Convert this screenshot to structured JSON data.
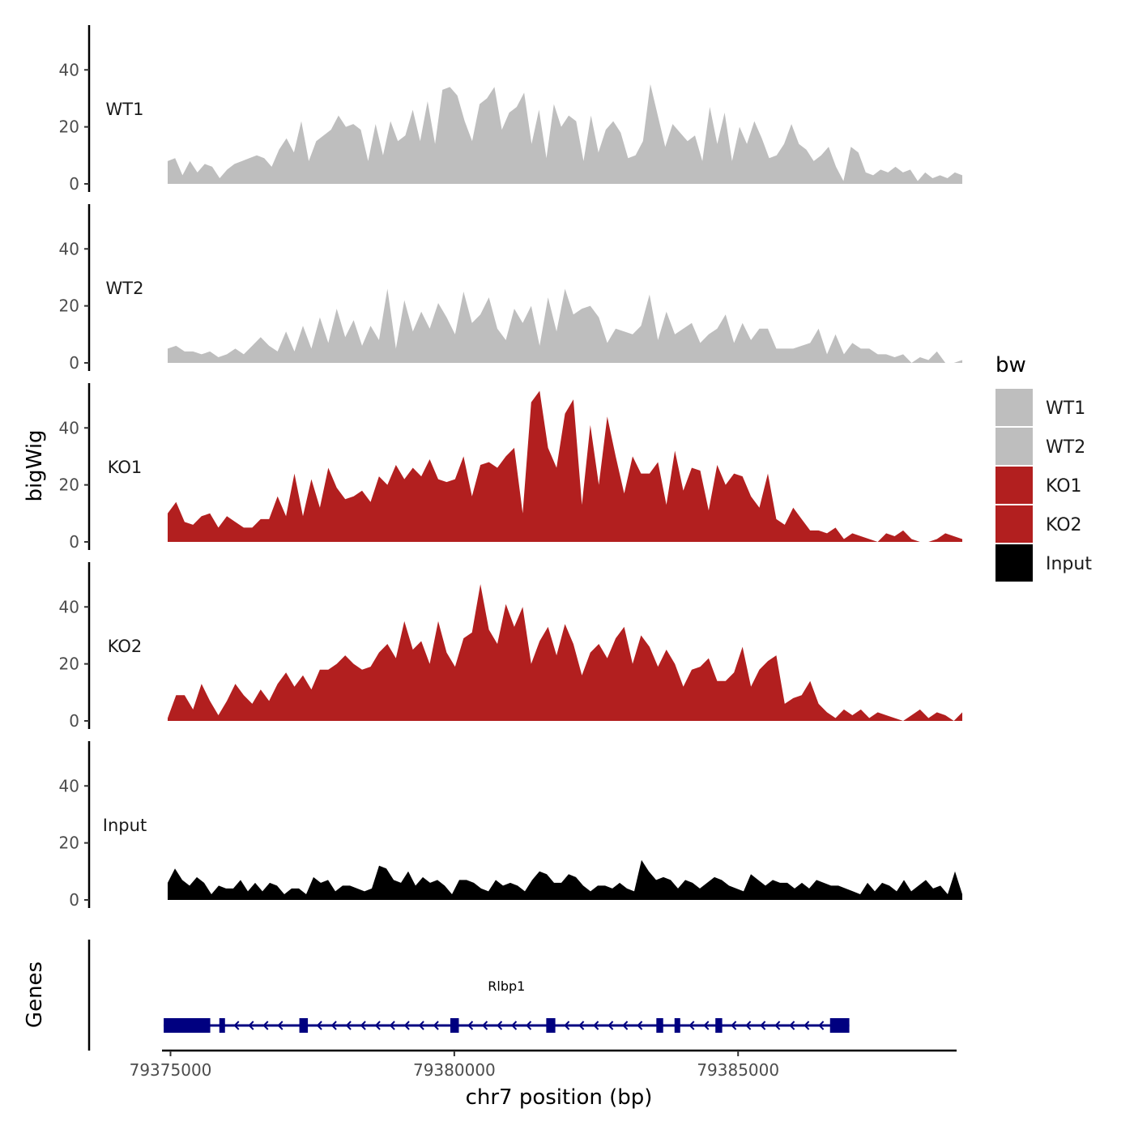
{
  "chart_data": {
    "type": "area",
    "chromosome": "chr7",
    "xlabel": "chr7 position (bp)",
    "ylabel": "bigWig",
    "genes_label": "Genes",
    "xlim": [
      79374850,
      79388850
    ],
    "ylim": [
      0,
      54
    ],
    "x_ticks": [
      79375000,
      79380000,
      79385000
    ],
    "x_tick_labels": [
      "79375000",
      "79380000",
      "79385000"
    ],
    "y_ticks": [
      0,
      20,
      40
    ],
    "y_tick_labels": [
      "0",
      "20",
      "40"
    ],
    "legend_title": "bw",
    "colors": {
      "WT1": "#bebebe",
      "WT2": "#bebebe",
      "KO1": "#b21f1f",
      "KO2": "#b21f1f",
      "Input": "#000000",
      "gene": "#000080"
    },
    "track_start": 79374950,
    "track_end": 79388950,
    "series": [
      {
        "name": "WT1",
        "x_start": 79374950,
        "x_end": 79388950,
        "values": [
          8,
          9,
          3,
          8,
          4,
          7,
          6,
          2,
          5,
          7,
          8,
          9,
          10,
          9,
          6,
          12,
          16,
          11,
          22,
          8,
          15,
          17,
          19,
          24,
          20,
          21,
          19,
          8,
          21,
          10,
          22,
          15,
          17,
          26,
          15,
          29,
          14,
          33,
          34,
          31,
          22,
          15,
          28,
          30,
          34,
          19,
          25,
          27,
          32,
          14,
          26,
          9,
          28,
          20,
          24,
          22,
          8,
          24,
          11,
          19,
          22,
          18,
          9,
          10,
          15,
          35,
          24,
          13,
          21,
          18,
          15,
          17,
          8,
          27,
          14,
          25,
          8,
          20,
          14,
          22,
          16,
          9,
          10,
          14,
          21,
          14,
          12,
          8,
          10,
          13,
          6,
          1,
          13,
          11,
          4,
          3,
          5,
          4,
          6,
          4,
          5,
          1,
          4,
          2,
          3,
          2,
          4,
          3
        ]
      },
      {
        "name": "WT2",
        "x_start": 79374950,
        "x_end": 79388950,
        "values": [
          5,
          6,
          4,
          4,
          3,
          4,
          2,
          3,
          5,
          3,
          6,
          9,
          6,
          4,
          11,
          4,
          13,
          5,
          16,
          7,
          19,
          9,
          15,
          6,
          13,
          8,
          26,
          5,
          22,
          11,
          18,
          12,
          21,
          16,
          10,
          25,
          14,
          17,
          23,
          12,
          8,
          19,
          14,
          20,
          6,
          23,
          11,
          26,
          17,
          19,
          20,
          16,
          7,
          12,
          11,
          10,
          13,
          24,
          8,
          18,
          10,
          12,
          14,
          7,
          10,
          12,
          17,
          7,
          14,
          8,
          12,
          12,
          5,
          5,
          5,
          6,
          7,
          12,
          3,
          10,
          3,
          7,
          5,
          5,
          3,
          3,
          2,
          3,
          0,
          2,
          1,
          4,
          0,
          0,
          1
        ]
      },
      {
        "name": "KO1",
        "x_start": 79374950,
        "x_end": 79388950,
        "values": [
          10,
          14,
          7,
          6,
          9,
          10,
          5,
          9,
          7,
          5,
          5,
          8,
          8,
          16,
          9,
          24,
          9,
          22,
          12,
          26,
          19,
          15,
          16,
          18,
          14,
          23,
          20,
          27,
          22,
          26,
          23,
          29,
          22,
          21,
          22,
          30,
          16,
          27,
          28,
          26,
          30,
          33,
          10,
          49,
          53,
          33,
          26,
          45,
          50,
          13,
          41,
          20,
          44,
          30,
          17,
          30,
          24,
          24,
          28,
          13,
          32,
          18,
          26,
          25,
          11,
          27,
          20,
          24,
          23,
          16,
          12,
          24,
          8,
          6,
          12,
          8,
          4,
          4,
          3,
          5,
          1,
          3,
          2,
          1,
          0,
          3,
          2,
          4,
          1,
          0,
          0,
          1,
          3,
          2,
          1
        ]
      },
      {
        "name": "KO2",
        "x_start": 79374950,
        "x_end": 79388950,
        "values": [
          1,
          9,
          9,
          4,
          13,
          7,
          2,
          7,
          13,
          9,
          6,
          11,
          7,
          13,
          17,
          12,
          16,
          11,
          18,
          18,
          20,
          23,
          20,
          18,
          19,
          24,
          27,
          22,
          35,
          25,
          28,
          20,
          35,
          24,
          19,
          29,
          31,
          48,
          32,
          27,
          41,
          33,
          40,
          20,
          28,
          33,
          23,
          34,
          27,
          16,
          24,
          27,
          22,
          29,
          33,
          20,
          30,
          26,
          19,
          25,
          20,
          12,
          18,
          19,
          22,
          14,
          14,
          17,
          26,
          12,
          18,
          21,
          23,
          6,
          8,
          9,
          14,
          6,
          3,
          1,
          4,
          2,
          4,
          1,
          3,
          2,
          1,
          0,
          2,
          4,
          1,
          3,
          2,
          0,
          3
        ]
      },
      {
        "name": "Input",
        "x_start": 79374950,
        "x_end": 79388950,
        "values": [
          6,
          11,
          7,
          5,
          8,
          6,
          2,
          5,
          4,
          4,
          7,
          3,
          6,
          3,
          6,
          5,
          2,
          4,
          4,
          2,
          8,
          6,
          7,
          3,
          5,
          5,
          4,
          3,
          4,
          12,
          11,
          7,
          6,
          10,
          5,
          8,
          6,
          7,
          5,
          2,
          7,
          7,
          6,
          4,
          3,
          7,
          5,
          6,
          5,
          3,
          7,
          10,
          9,
          6,
          6,
          9,
          8,
          5,
          3,
          5,
          5,
          4,
          6,
          4,
          3,
          14,
          10,
          7,
          8,
          7,
          4,
          7,
          6,
          4,
          6,
          8,
          7,
          5,
          4,
          3,
          9,
          7,
          5,
          7,
          6,
          6,
          4,
          6,
          4,
          7,
          6,
          5,
          5,
          4,
          3,
          2,
          6,
          3,
          6,
          5,
          3,
          7,
          3,
          5,
          7,
          4,
          5,
          2,
          10,
          2
        ]
      }
    ],
    "gene": {
      "name": "Rlbp1",
      "strand": "-",
      "start": 79374880,
      "end": 79386960,
      "exons": [
        [
          79374880,
          79375700
        ],
        [
          79375860,
          79375960
        ],
        [
          79377270,
          79377420
        ],
        [
          79379930,
          79380080
        ],
        [
          79381620,
          79381780
        ],
        [
          79383560,
          79383680
        ],
        [
          79383880,
          79383980
        ],
        [
          79384600,
          79384720
        ],
        [
          79386620,
          79386960
        ]
      ]
    },
    "legend": [
      {
        "label": "WT1",
        "color": "#bebebe"
      },
      {
        "label": "WT2",
        "color": "#bebebe"
      },
      {
        "label": "KO1",
        "color": "#b21f1f"
      },
      {
        "label": "KO2",
        "color": "#b21f1f"
      },
      {
        "label": "Input",
        "color": "#000000"
      }
    ]
  }
}
